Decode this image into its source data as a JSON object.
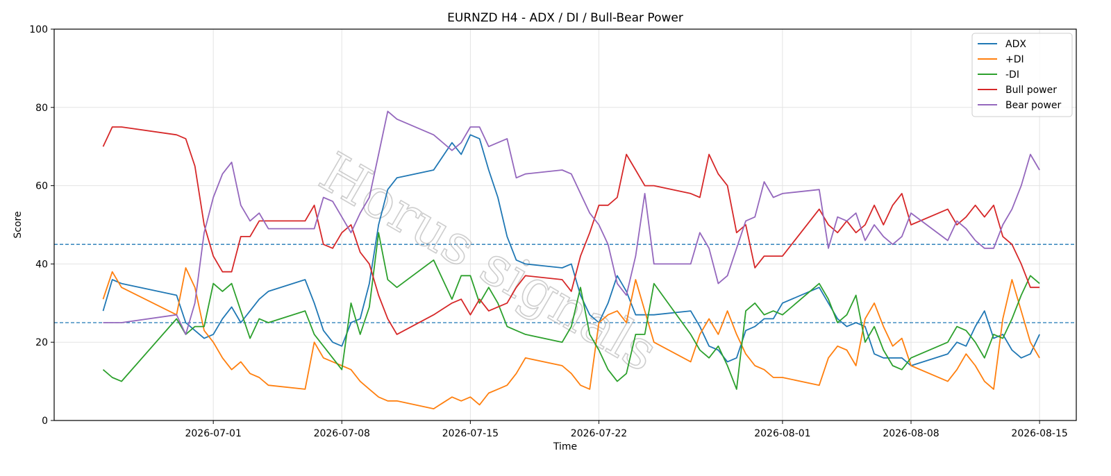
{
  "watermark": "Horus signals",
  "chart_data": {
    "type": "line",
    "title": "EURNZD H4 - ADX / DI / Bull-Bear Power",
    "xlabel": "Time",
    "ylabel": "Score",
    "ylim": [
      0,
      100
    ],
    "xlim": [
      "2026-06-22T08:00",
      "2026-08-17T00:00"
    ],
    "yticks": [
      0,
      20,
      40,
      60,
      80,
      100
    ],
    "xticks": [
      "2026-07-01",
      "2026-07-08",
      "2026-07-15",
      "2026-07-22",
      "2026-08-01",
      "2026-08-08",
      "2026-08-15"
    ],
    "hlines": [
      45,
      25
    ],
    "grid": true,
    "legend_position": "top-right",
    "x": [
      "2026-06-25T00:00",
      "2026-06-25T12:00",
      "2026-06-26T00:00",
      "2026-06-29T00:00",
      "2026-06-29T12:00",
      "2026-06-30T00:00",
      "2026-06-30T12:00",
      "2026-07-01T00:00",
      "2026-07-01T12:00",
      "2026-07-02T00:00",
      "2026-07-02T12:00",
      "2026-07-03T00:00",
      "2026-07-03T12:00",
      "2026-07-04T00:00",
      "2026-07-06T00:00",
      "2026-07-06T12:00",
      "2026-07-07T00:00",
      "2026-07-07T12:00",
      "2026-07-08T00:00",
      "2026-07-08T12:00",
      "2026-07-09T00:00",
      "2026-07-09T12:00",
      "2026-07-10T00:00",
      "2026-07-10T12:00",
      "2026-07-11T00:00",
      "2026-07-13T00:00",
      "2026-07-14T00:00",
      "2026-07-14T12:00",
      "2026-07-15T00:00",
      "2026-07-15T12:00",
      "2026-07-16T00:00",
      "2026-07-16T12:00",
      "2026-07-17T00:00",
      "2026-07-17T12:00",
      "2026-07-18T00:00",
      "2026-07-20T00:00",
      "2026-07-20T12:00",
      "2026-07-21T00:00",
      "2026-07-21T12:00",
      "2026-07-22T00:00",
      "2026-07-22T12:00",
      "2026-07-23T00:00",
      "2026-07-23T12:00",
      "2026-07-24T00:00",
      "2026-07-24T12:00",
      "2026-07-25T00:00",
      "2026-07-27T00:00",
      "2026-07-27T12:00",
      "2026-07-28T00:00",
      "2026-07-28T12:00",
      "2026-07-29T00:00",
      "2026-07-29T12:00",
      "2026-07-30T00:00",
      "2026-07-30T12:00",
      "2026-07-31T00:00",
      "2026-07-31T12:00",
      "2026-08-01T00:00",
      "2026-08-03T00:00",
      "2026-08-03T12:00",
      "2026-08-04T00:00",
      "2026-08-04T12:00",
      "2026-08-05T00:00",
      "2026-08-05T12:00",
      "2026-08-06T00:00",
      "2026-08-06T12:00",
      "2026-08-07T00:00",
      "2026-08-07T12:00",
      "2026-08-08T00:00",
      "2026-08-10T00:00",
      "2026-08-10T12:00",
      "2026-08-11T00:00",
      "2026-08-11T12:00",
      "2026-08-12T00:00",
      "2026-08-12T12:00",
      "2026-08-13T00:00",
      "2026-08-13T12:00",
      "2026-08-14T00:00",
      "2026-08-14T12:00",
      "2026-08-15T00:00"
    ],
    "series": [
      {
        "name": "ADX",
        "color": "#1f77b4",
        "values": [
          28,
          36,
          35,
          32,
          25,
          23,
          21,
          22,
          26,
          29,
          25,
          28,
          31,
          33,
          36,
          30,
          23,
          20,
          19,
          25,
          26,
          35,
          50,
          59,
          62,
          64,
          71,
          68,
          73,
          72,
          64,
          57,
          47,
          41,
          40,
          39,
          40,
          32,
          27,
          25,
          30,
          37,
          33,
          27,
          27,
          27,
          28,
          24,
          19,
          18,
          15,
          16,
          23,
          24,
          26,
          26,
          30,
          34,
          30,
          26,
          24,
          25,
          24,
          17,
          16,
          16,
          16,
          14,
          17,
          20,
          19,
          24,
          28,
          21,
          22,
          18,
          16,
          17,
          22
        ]
      },
      {
        "name": "+DI",
        "color": "#ff7f0e",
        "values": [
          31,
          38,
          34,
          27,
          39,
          34,
          23,
          20,
          16,
          13,
          15,
          12,
          11,
          9,
          8,
          20,
          16,
          15,
          14,
          13,
          10,
          8,
          6,
          5,
          5,
          3,
          6,
          5,
          6,
          4,
          7,
          8,
          9,
          12,
          16,
          14,
          12,
          9,
          8,
          25,
          27,
          28,
          25,
          36,
          28,
          20,
          15,
          22,
          26,
          22,
          28,
          22,
          17,
          14,
          13,
          11,
          11,
          9,
          16,
          19,
          18,
          14,
          26,
          30,
          24,
          19,
          21,
          14,
          10,
          13,
          17,
          14,
          10,
          8,
          26,
          36,
          28,
          20,
          16
        ]
      },
      {
        "name": "-DI",
        "color": "#2ca02c",
        "values": [
          13,
          11,
          10,
          26,
          22,
          24,
          24,
          35,
          33,
          35,
          28,
          21,
          26,
          25,
          28,
          22,
          19,
          16,
          13,
          30,
          22,
          29,
          48,
          36,
          34,
          41,
          31,
          37,
          37,
          30,
          34,
          30,
          24,
          23,
          22,
          20,
          24,
          34,
          22,
          18,
          13,
          10,
          12,
          22,
          22,
          35,
          22,
          18,
          16,
          19,
          14,
          8,
          28,
          30,
          27,
          28,
          27,
          35,
          31,
          25,
          27,
          32,
          20,
          24,
          18,
          14,
          13,
          16,
          20,
          24,
          23,
          20,
          16,
          22,
          21,
          26,
          32,
          37,
          35
        ]
      },
      {
        "name": "Bull power",
        "color": "#d62728",
        "values": [
          70,
          75,
          75,
          73,
          72,
          65,
          50,
          42,
          38,
          38,
          47,
          47,
          51,
          51,
          51,
          55,
          45,
          44,
          48,
          50,
          43,
          40,
          32,
          26,
          22,
          27,
          30,
          31,
          27,
          31,
          28,
          29,
          30,
          34,
          37,
          36,
          33,
          42,
          48,
          55,
          55,
          57,
          68,
          64,
          60,
          60,
          58,
          57,
          68,
          63,
          60,
          48,
          50,
          39,
          42,
          42,
          42,
          54,
          50,
          48,
          51,
          48,
          50,
          55,
          50,
          55,
          58,
          50,
          54,
          50,
          52,
          55,
          52,
          55,
          47,
          45,
          40,
          34,
          34
        ]
      },
      {
        "name": "Bear power",
        "color": "#9467bd",
        "values": [
          25,
          25,
          25,
          27,
          22,
          30,
          48,
          57,
          63,
          66,
          55,
          51,
          53,
          49,
          49,
          49,
          57,
          56,
          52,
          48,
          53,
          57,
          68,
          79,
          77,
          73,
          69,
          71,
          75,
          75,
          70,
          71,
          72,
          62,
          63,
          64,
          63,
          58,
          53,
          50,
          45,
          35,
          32,
          42,
          58,
          40,
          40,
          48,
          44,
          35,
          37,
          44,
          51,
          52,
          61,
          57,
          58,
          59,
          44,
          52,
          51,
          53,
          46,
          50,
          47,
          45,
          47,
          53,
          46,
          51,
          49,
          46,
          44,
          44,
          50,
          54,
          60,
          68,
          64
        ]
      }
    ]
  }
}
